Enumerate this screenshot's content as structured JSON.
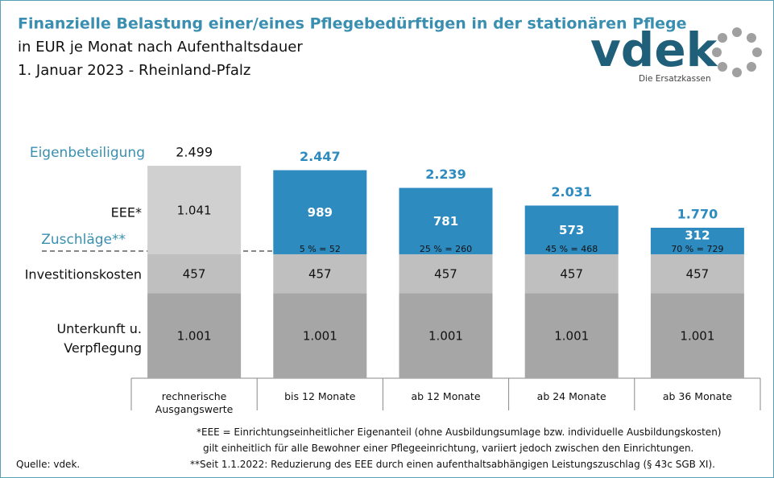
{
  "chart_data": {
    "type": "stacked_bar",
    "title": "Finanzielle Belastung einer/eines Pflegebedürftigen in der stationären Pflege",
    "subtitle": [
      "in EUR je Monat nach Aufenthaltsdauer",
      "1. Januar 2023 - Rheinland-Pfalz"
    ],
    "logo": {
      "name": "vdek",
      "tagline": "Die Ersatzkassen"
    },
    "categories": [
      "rechnerische Ausgangswerte",
      "bis 12 Monate",
      "ab 12 Monate",
      "ab 24 Monate",
      "ab 36 Monate"
    ],
    "series": [
      {
        "name": "Unterkunft u. Verpflegung",
        "color": "#a6a6a6",
        "values": [
          1001,
          1001,
          1001,
          1001,
          1001
        ],
        "value_labels": [
          "1.001",
          "1.001",
          "1.001",
          "1.001",
          "1.001"
        ]
      },
      {
        "name": "Investitionskosten",
        "color": "#bfbfbf",
        "values": [
          457,
          457,
          457,
          457,
          457
        ],
        "value_labels": [
          "457",
          "457",
          "457",
          "457",
          "457"
        ]
      },
      {
        "name": "EEE*",
        "colors": [
          "#d0d0d0",
          "#2e8bc0",
          "#2e8bc0",
          "#2e8bc0",
          "#2e8bc0"
        ],
        "values": [
          1041,
          989,
          781,
          573,
          312
        ],
        "value_labels": [
          "1.041",
          "989",
          "781",
          "573",
          "312"
        ]
      }
    ],
    "totals": {
      "name": "Eigenbeteiligung",
      "values": [
        2499,
        2447,
        2239,
        2031,
        1770
      ],
      "value_labels": [
        "2.499",
        "2.447",
        "2.239",
        "2.031",
        "1.770"
      ]
    },
    "surcharges": {
      "name": "Zuschläge**",
      "labels": [
        null,
        "5 % = 52",
        "25 % = 260",
        "45 % = 468",
        "70 % = 729"
      ]
    },
    "notes": [
      "*EEE = Einrichtungseinheitlicher  Eigenanteil (ohne Ausbildungsumlage bzw. individuelle Ausbildungskosten)",
      "gilt einheitlich für alle Bewohner einer Pflegeeinrichtung, variiert jedoch zwischen den Einrichtungen.",
      "**Seit 1.1.2022: Reduzierung des EEE durch einen aufenthaltsabhängigen Leistungszuschlag  (§ 43c SGB XI)."
    ],
    "source": "Quelle: vdek."
  }
}
